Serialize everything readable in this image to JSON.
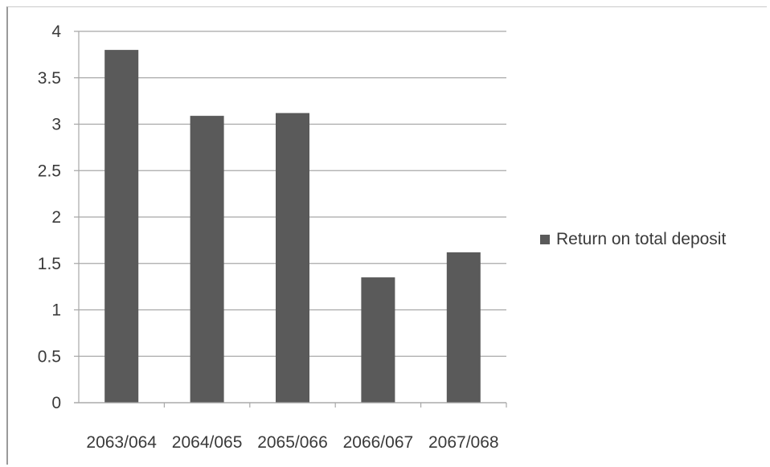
{
  "chart_data": {
    "type": "bar",
    "categories": [
      "2063/064",
      "2064/065",
      "2065/066",
      "2066/067",
      "2067/068"
    ],
    "series": [
      {
        "name": "Return on total deposit",
        "values": [
          3.8,
          3.09,
          3.12,
          1.35,
          1.62
        ],
        "color": "#5a5a5a"
      }
    ],
    "yticks": [
      "0",
      "0.5",
      "1",
      "1.5",
      "2",
      "2.5",
      "3",
      "3.5",
      "4"
    ],
    "ylim": [
      0,
      4
    ],
    "grid": true,
    "legend_position": "right",
    "title": "",
    "xlabel": "",
    "ylabel": ""
  }
}
